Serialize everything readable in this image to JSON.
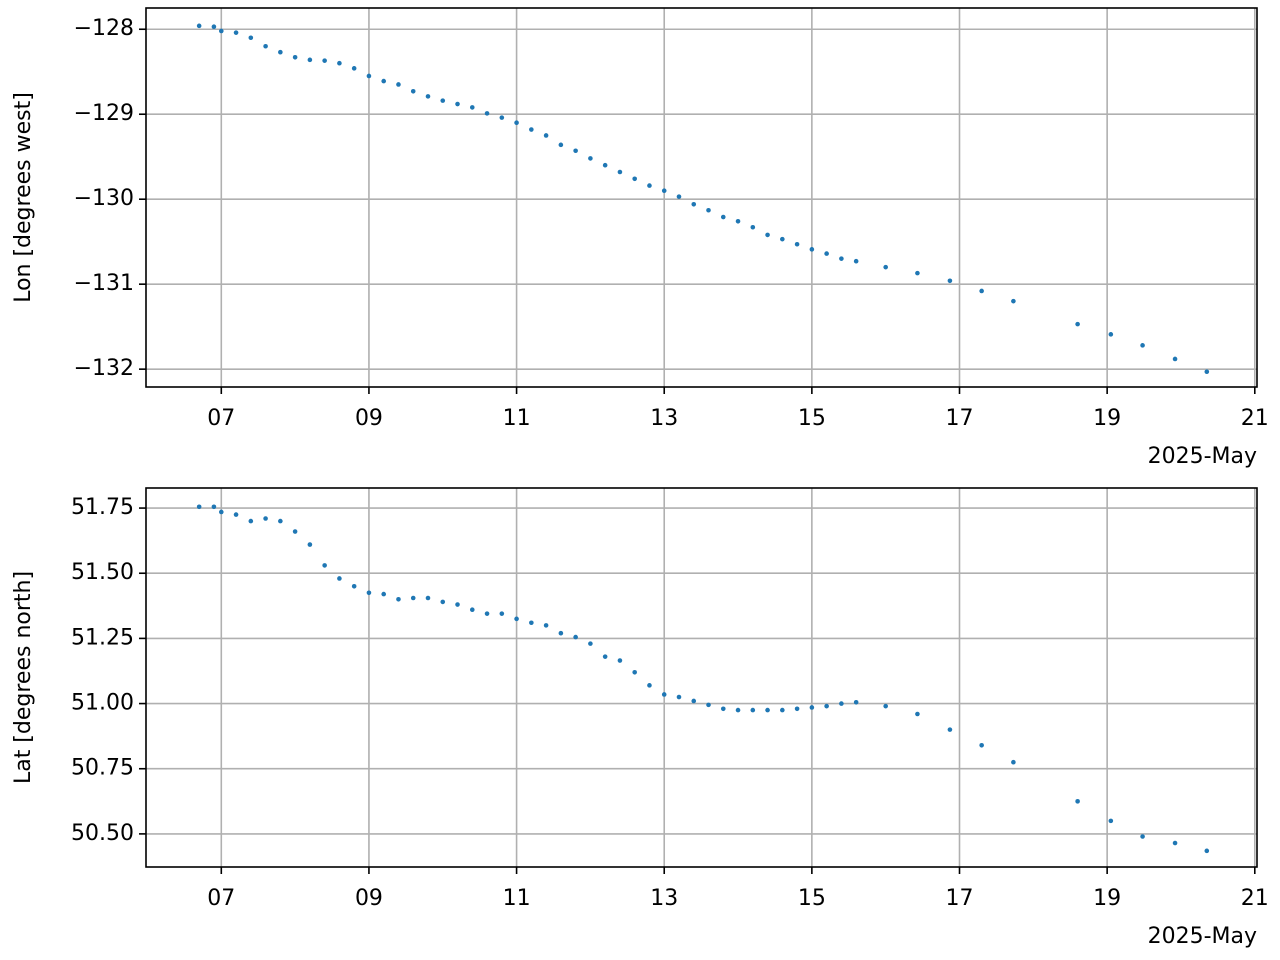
{
  "chart_data": [
    {
      "type": "scatter",
      "ylabel": "Lon [degrees west]",
      "x_offset_label": "2025-May",
      "color": "#1f77b4",
      "grid": true,
      "x": [
        6.7,
        6.9,
        7.0,
        7.2,
        7.4,
        7.6,
        7.8,
        8.0,
        8.2,
        8.4,
        8.6,
        8.8,
        9.0,
        9.2,
        9.4,
        9.6,
        9.8,
        10.0,
        10.2,
        10.4,
        10.6,
        10.8,
        11.0,
        11.2,
        11.4,
        11.6,
        11.8,
        12.0,
        12.2,
        12.4,
        12.6,
        12.8,
        13.0,
        13.2,
        13.4,
        13.6,
        13.8,
        14.0,
        14.2,
        14.4,
        14.6,
        14.8,
        15.0,
        15.2,
        15.4,
        15.6,
        16.0,
        16.43,
        16.87,
        17.3,
        17.73,
        18.6,
        19.05,
        19.48,
        19.92,
        20.35
      ],
      "values": [
        -127.96,
        -127.97,
        -128.02,
        -128.04,
        -128.1,
        -128.2,
        -128.27,
        -128.33,
        -128.36,
        -128.37,
        -128.4,
        -128.46,
        -128.55,
        -128.61,
        -128.65,
        -128.73,
        -128.79,
        -128.84,
        -128.88,
        -128.92,
        -128.99,
        -129.04,
        -129.1,
        -129.18,
        -129.25,
        -129.36,
        -129.43,
        -129.52,
        -129.6,
        -129.68,
        -129.76,
        -129.84,
        -129.9,
        -129.97,
        -130.06,
        -130.13,
        -130.21,
        -130.26,
        -130.33,
        -130.42,
        -130.47,
        -130.53,
        -130.59,
        -130.64,
        -130.7,
        -130.73,
        -130.8,
        -130.87,
        -130.96,
        -131.08,
        -131.2,
        -131.47,
        -131.59,
        -131.72,
        -131.88,
        -132.03
      ],
      "xlim": [
        5.98,
        21.03
      ],
      "ylim": [
        -132.21,
        -127.75
      ],
      "xticks": [
        {
          "value": 7,
          "label": "07"
        },
        {
          "value": 9,
          "label": "09"
        },
        11,
        13,
        15,
        17,
        19,
        21
      ],
      "yticks": [
        {
          "value": -132,
          "label": "−132"
        },
        {
          "value": -131,
          "label": "−131"
        },
        {
          "value": -130,
          "label": "−130"
        },
        {
          "value": -129,
          "label": "−129"
        },
        {
          "value": -128,
          "label": "−128"
        }
      ]
    },
    {
      "type": "scatter",
      "ylabel": "Lat [degrees north]",
      "x_offset_label": "2025-May",
      "color": "#1f77b4",
      "grid": true,
      "x": [
        6.7,
        6.9,
        7.0,
        7.2,
        7.4,
        7.6,
        7.8,
        8.0,
        8.2,
        8.4,
        8.6,
        8.8,
        9.0,
        9.2,
        9.4,
        9.6,
        9.8,
        10.0,
        10.2,
        10.4,
        10.6,
        10.8,
        11.0,
        11.2,
        11.4,
        11.6,
        11.8,
        12.0,
        12.2,
        12.4,
        12.6,
        12.8,
        13.0,
        13.2,
        13.4,
        13.6,
        13.8,
        14.0,
        14.2,
        14.4,
        14.6,
        14.8,
        15.0,
        15.2,
        15.4,
        15.6,
        16.0,
        16.43,
        16.87,
        17.3,
        17.73,
        18.6,
        19.05,
        19.48,
        19.92,
        20.35
      ],
      "values": [
        51.755,
        51.755,
        51.735,
        51.725,
        51.7,
        51.71,
        51.7,
        51.66,
        51.61,
        51.53,
        51.48,
        51.45,
        51.425,
        51.42,
        51.4,
        51.405,
        51.405,
        51.39,
        51.38,
        51.36,
        51.345,
        51.345,
        51.325,
        51.31,
        51.3,
        51.27,
        51.255,
        51.23,
        51.18,
        51.165,
        51.12,
        51.07,
        51.035,
        51.025,
        51.01,
        50.995,
        50.98,
        50.975,
        50.975,
        50.975,
        50.975,
        50.98,
        50.985,
        50.99,
        51.0,
        51.005,
        50.99,
        50.96,
        50.9,
        50.84,
        50.775,
        50.625,
        50.55,
        50.49,
        50.465,
        50.435
      ],
      "xlim": [
        5.98,
        21.03
      ],
      "ylim": [
        50.373,
        51.827
      ],
      "xticks": [
        {
          "value": 7,
          "label": "07"
        },
        {
          "value": 9,
          "label": "09"
        },
        11,
        13,
        15,
        17,
        19,
        21
      ],
      "yticks": [
        {
          "value": 50.5,
          "label": "50.50"
        },
        50.75,
        {
          "value": 51,
          "label": "51.00"
        },
        51.25,
        {
          "value": 51.5,
          "label": "51.50"
        },
        51.75
      ]
    }
  ]
}
